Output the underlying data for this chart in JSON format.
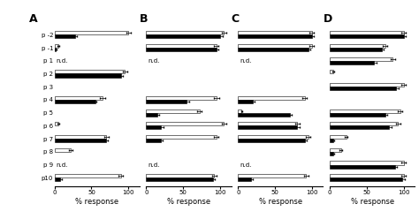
{
  "panels": [
    "A",
    "B",
    "C",
    "D"
  ],
  "y_labels": [
    "p -2",
    "p -1",
    "p 1",
    "p 2",
    "p 3",
    "p 4",
    "p 5",
    "p 6",
    "p 7",
    "p 8",
    "p 9",
    "p10"
  ],
  "nd_indices": {
    "A": [
      2,
      10
    ],
    "B": [
      2,
      10
    ],
    "C": [
      2,
      10
    ],
    "D": []
  },
  "data": {
    "A": {
      "white": [
        100,
        5,
        0,
        95,
        0,
        65,
        0,
        5,
        70,
        22,
        0,
        90
      ],
      "black": [
        28,
        2,
        0,
        90,
        0,
        55,
        0,
        0,
        70,
        0,
        0,
        8
      ]
    },
    "B": {
      "white": [
        105,
        95,
        0,
        0,
        0,
        95,
        72,
        105,
        95,
        0,
        0,
        92
      ],
      "black": [
        100,
        95,
        0,
        0,
        0,
        55,
        15,
        20,
        20,
        0,
        0,
        90
      ]
    },
    "C": {
      "white": [
        100,
        100,
        0,
        0,
        0,
        90,
        5,
        80,
        95,
        0,
        0,
        92
      ],
      "black": [
        100,
        95,
        0,
        0,
        0,
        20,
        70,
        80,
        90,
        0,
        0,
        18
      ]
    },
    "D": {
      "white": [
        100,
        75,
        85,
        5,
        100,
        0,
        95,
        92,
        22,
        15,
        100,
        100
      ],
      "black": [
        100,
        70,
        60,
        0,
        90,
        0,
        75,
        80,
        5,
        5,
        88,
        98
      ]
    }
  },
  "errors": {
    "A": {
      "white": [
        3,
        1,
        0,
        3,
        0,
        4,
        0,
        1,
        3,
        2,
        0,
        3
      ],
      "black": [
        2,
        1,
        0,
        2,
        0,
        2,
        0,
        0,
        2,
        0,
        0,
        2
      ]
    },
    "B": {
      "white": [
        3,
        3,
        0,
        0,
        0,
        4,
        3,
        3,
        3,
        0,
        0,
        3
      ],
      "black": [
        3,
        3,
        0,
        0,
        0,
        3,
        2,
        3,
        2,
        0,
        0,
        3
      ]
    },
    "C": {
      "white": [
        3,
        3,
        0,
        0,
        0,
        3,
        1,
        3,
        3,
        0,
        0,
        3
      ],
      "black": [
        3,
        3,
        0,
        0,
        0,
        2,
        3,
        3,
        3,
        0,
        0,
        2
      ]
    },
    "D": {
      "white": [
        3,
        3,
        3,
        1,
        3,
        0,
        3,
        3,
        2,
        2,
        3,
        3
      ],
      "black": [
        3,
        3,
        3,
        0,
        3,
        0,
        3,
        3,
        1,
        1,
        3,
        3
      ]
    }
  },
  "xlim": [
    0,
    115
  ],
  "xticks": [
    0,
    50,
    100
  ],
  "xticklabels": [
    "0",
    "50",
    "100"
  ],
  "xlabel": "% response",
  "bar_height": 0.28,
  "white_color": "#ffffff",
  "black_color": "#000000",
  "edge_color": "#000000",
  "background_color": "#ffffff",
  "panel_fontsize": 9,
  "label_fontsize": 6,
  "tick_fontsize": 5,
  "nd_fontsize": 5
}
